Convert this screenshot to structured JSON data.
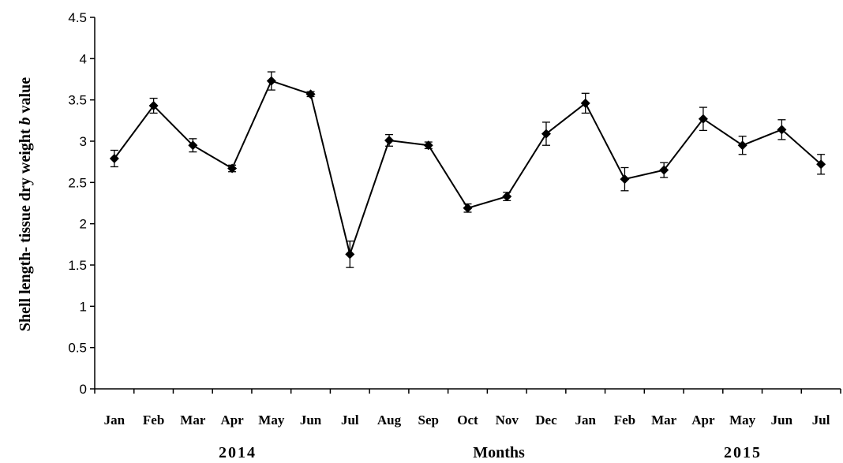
{
  "chart_data": {
    "type": "line",
    "x": [
      "Jan",
      "Feb",
      "Mar",
      "Apr",
      "May",
      "Jun",
      "Jul",
      "Aug",
      "Sep",
      "Oct",
      "Nov",
      "Dec",
      "Jan",
      "Feb",
      "Mar",
      "Apr",
      "May",
      "Jun",
      "Jul"
    ],
    "series": [
      {
        "values": [
          2.79,
          3.43,
          2.95,
          2.67,
          3.73,
          3.57,
          1.63,
          3.01,
          2.95,
          2.19,
          2.33,
          3.09,
          3.46,
          2.54,
          2.65,
          3.27,
          2.95,
          3.14,
          2.72
        ],
        "error": [
          0.1,
          0.09,
          0.08,
          0.04,
          0.11,
          0.03,
          0.16,
          0.07,
          0.04,
          0.05,
          0.05,
          0.14,
          0.12,
          0.14,
          0.09,
          0.14,
          0.11,
          0.12,
          0.12
        ]
      }
    ],
    "ylabel_parts": [
      "Shell length- tissue dry weight ",
      "b",
      " value"
    ],
    "xlabel": "Months",
    "year_labels": [
      "2014",
      "2015"
    ],
    "ylim": [
      0,
      4.5
    ],
    "yticks": [
      "0",
      "0.5",
      "1",
      "1.5",
      "2",
      "2.5",
      "3",
      "3.5",
      "4",
      "4.5"
    ],
    "grid": false,
    "legend": "none",
    "colors": {
      "line": "#000000",
      "marker": "#000000"
    }
  }
}
